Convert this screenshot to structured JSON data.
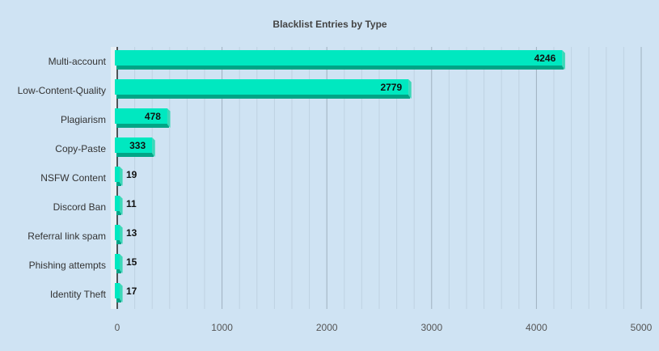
{
  "chart_data": {
    "type": "bar",
    "orientation": "horizontal",
    "title": "Blacklist Entries by Type",
    "categories": [
      "Multi-account",
      "Low-Content-Quality",
      "Plagiarism",
      "Copy-Paste",
      "NSFW Content",
      "Discord Ban",
      "Referral link spam",
      "Phishing attempts",
      "Identity Theft"
    ],
    "values": [
      4246,
      2779,
      478,
      333,
      19,
      11,
      13,
      15,
      17
    ],
    "xlim": [
      0,
      5000
    ],
    "xticks": [
      "0",
      "1000",
      "2000",
      "3000",
      "4000",
      "5000"
    ],
    "grid": true,
    "legend": "none",
    "colors": {
      "bar_face": "#00e8c0",
      "bar_bottom": "#00a586",
      "bar_side": "#3cd8b8",
      "background": "#cfe3f3",
      "grid_major": "#9fb0bf",
      "grid_minor": "#bfd2e2"
    }
  }
}
